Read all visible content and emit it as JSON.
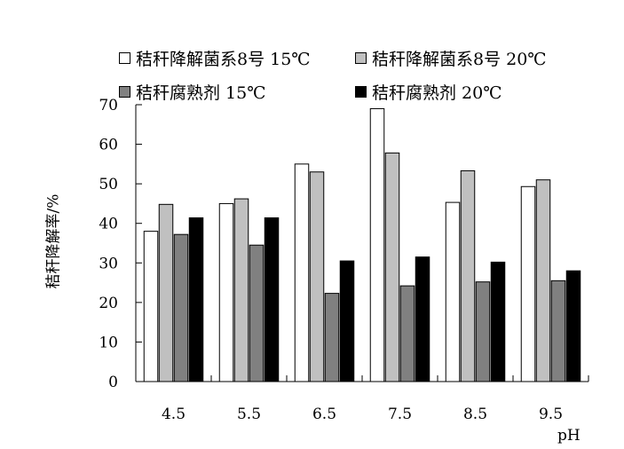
{
  "chart_data": {
    "type": "bar",
    "categories": [
      "4.5",
      "5.5",
      "6.5",
      "7.5",
      "8.5",
      "9.5"
    ],
    "series": [
      {
        "name": "秸秆降解菌系8号 15℃",
        "color": "#ffffff",
        "values": [
          38,
          45,
          55,
          69,
          45.3,
          49.3
        ]
      },
      {
        "name": "秸秆降解菌系8号 20℃",
        "color": "#c0c0c0",
        "values": [
          44.8,
          46.2,
          53,
          57.8,
          53.3,
          51
        ]
      },
      {
        "name": "秸秆腐熟剂 15℃",
        "color": "#808080",
        "values": [
          37.2,
          34.5,
          22.3,
          24.2,
          25.2,
          25.5
        ]
      },
      {
        "name": "秸秆腐熟剂 20℃",
        "color": "#000000",
        "values": [
          41.4,
          41.4,
          30.5,
          31.5,
          30.2,
          28
        ]
      }
    ],
    "ylabel": "秸秆降解率/%",
    "xlabel": "pH",
    "ylim": [
      0,
      70
    ],
    "yticks": [
      "0",
      "10",
      "20",
      "30",
      "40",
      "50",
      "60",
      "70"
    ],
    "grid": false,
    "legend_position": "top"
  }
}
